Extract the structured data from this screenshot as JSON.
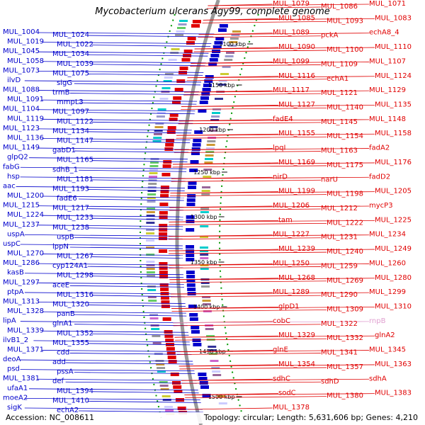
{
  "title": "Mycobacterium ulcerans Agy99, complete genome",
  "accession": "Accession: NC_008611",
  "summary": "Topology: circular; Length: 5,631,606 bp; Genes: 4,210",
  "colors": {
    "forward_strand": "#0000cc",
    "reverse_strand": "#e00000",
    "rna": "#e0a0d0",
    "backbone": "#999999"
  },
  "kbp_ticks": [
    "1100 kbp",
    "1150 kbp",
    "1200 kbp",
    "1250 kbp",
    "1300 kbp",
    "1350 kbp",
    "1400 kbp",
    "1450 kbp",
    "1500 kbp"
  ],
  "left_labels": [
    "MUL_1004",
    "MUL_1024",
    "MUL_1019",
    "MUL_1022",
    "MUL_1045",
    "MUL_1034",
    "MUL_1058",
    "MUL_1039",
    "MUL_1073",
    "MUL_1075",
    "ilvD",
    "sigG",
    "MUL_1088",
    "trmB",
    "MUL_1091",
    "mmpL3",
    "MUL_1104",
    "MUL_1097",
    "MUL_1119",
    "MUL_1122",
    "MUL_1123",
    "MUL_1134",
    "MUL_1136",
    "MUL_1147",
    "MUL_1149",
    "gabD1",
    "glpQ2",
    "MUL_1165",
    "fabG",
    "sdhB_1",
    "hsp",
    "MUL_1181",
    "aac",
    "MUL_1193",
    "MUL_1200",
    "fadE6",
    "MUL_1215",
    "MUL_1217",
    "MUL_1224",
    "MUL_1233",
    "MUL_1237",
    "MUL_1238",
    "uspA",
    "uspB",
    "uspC",
    "lppN",
    "MUL_1270",
    "MUL_1267",
    "MUL_1286",
    "cyp124A1",
    "kasB",
    "MUL_1298",
    "MUL_1297",
    "aceE",
    "ptpA",
    "MUL_1316",
    "MUL_1313",
    "MUL_1320",
    "MUL_1328",
    "panB",
    "lipA",
    "glnA1",
    "MUL_1339",
    "MUL_1352",
    "ilvB1_2",
    "MUL_1355",
    "MUL_1371",
    "cdd",
    "deoA",
    "add",
    "psd",
    "pssA",
    "MUL_1381",
    "def",
    "ufaA1",
    "MUL_1394",
    "moeA2",
    "MUL_1410",
    "sigK",
    "echA2"
  ],
  "right_labels": [
    "MUL_1079",
    "MUL_1086",
    "MUL_1071",
    "MUL_1085",
    "MUL_1093",
    "MUL_1083",
    "MUL_1089",
    "pckA",
    "echA8_4",
    "MUL_1090",
    "MUL_1100",
    "MUL_1110",
    "MUL_1099",
    "MUL_1109",
    "MUL_1107",
    "MUL_1116",
    "echA1",
    "MUL_1124",
    "MUL_1117",
    "MUL_1121",
    "MUL_1129",
    "MUL_1127",
    "MUL_1140",
    "MUL_1135",
    "fadE4",
    "MUL_1145",
    "MUL_1148",
    "MUL_1155",
    "MUL_1154",
    "MUL_1158",
    "lpqI",
    "MUL_1163",
    "fadA2",
    "MUL_1169",
    "MUL_1175",
    "MUL_1176",
    "nirD",
    "narU",
    "fadD2",
    "MUL_1199",
    "MUL_1198",
    "MUL_1205",
    "MUL_1206",
    "MUL_1212",
    "mycP3",
    "tam",
    "MUL_1222",
    "MUL_1225",
    "MUL_1227",
    "MUL_1231",
    "MUL_1234",
    "MUL_1239",
    "MUL_1240",
    "MUL_1249",
    "MUL_1250",
    "MUL_1259",
    "MUL_1260",
    "MUL_1268",
    "MUL_1269",
    "MUL_1280",
    "MUL_1289",
    "MUL_1290",
    "MUL_1299",
    "glpD1",
    "MUL_1309",
    "MUL_1310",
    "cobC",
    "MUL_1322",
    "rnpB",
    "MUL_1329",
    "MUL_1332",
    "glnA2",
    "glnE",
    "MUL_1341",
    "MUL_1345",
    "MUL_1354",
    "MUL_1357",
    "MUL_1363",
    "sdhC",
    "sdhD",
    "sdhA",
    "sodC",
    "MUL_1380",
    "MUL_1383",
    "MUL_1378"
  ]
}
